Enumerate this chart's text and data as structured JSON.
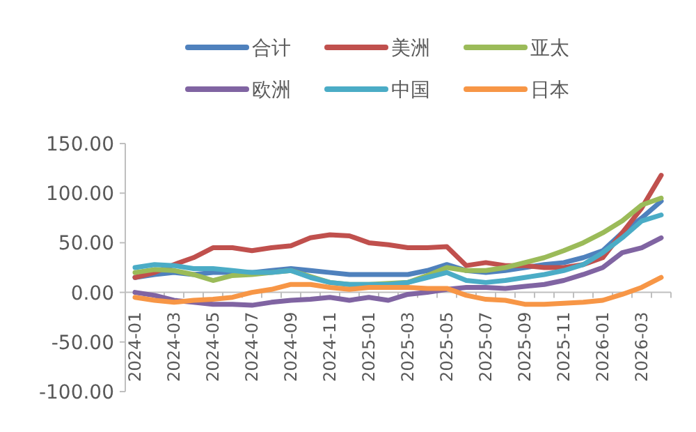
{
  "chart_data": {
    "type": "line",
    "categories": [
      "2024-01",
      null,
      "2024-03",
      null,
      "2024-05",
      null,
      "2024-07",
      null,
      "2024-09",
      null,
      "2024-11",
      null,
      "2025-01",
      null,
      "2025-03",
      null,
      "2025-05",
      null,
      "2025-07",
      null,
      "2025-09",
      null,
      "2025-11",
      null,
      "2026-01",
      null,
      "2026-03",
      null
    ],
    "ylim": [
      -100,
      150
    ],
    "yticks": [
      {
        "value": -100,
        "label": "-100.00"
      },
      {
        "value": -50,
        "label": "-50.00"
      },
      {
        "value": 0,
        "label": "0.00"
      },
      {
        "value": 50,
        "label": "50.00"
      },
      {
        "value": 100,
        "label": "100.00"
      },
      {
        "value": 150,
        "label": "150.00"
      }
    ],
    "legend": "top",
    "series": [
      {
        "name": "合计",
        "color": "#4f81bd",
        "values": [
          15,
          18,
          20,
          18,
          20,
          20,
          20,
          22,
          24,
          22,
          20,
          18,
          18,
          18,
          18,
          22,
          28,
          22,
          20,
          22,
          25,
          28,
          30,
          35,
          42,
          60,
          75,
          92
        ]
      },
      {
        "name": "美洲",
        "color": "#c0504d",
        "values": [
          15,
          20,
          28,
          35,
          45,
          45,
          42,
          45,
          47,
          55,
          58,
          57,
          50,
          48,
          45,
          45,
          46,
          27,
          30,
          27,
          27,
          25,
          25,
          28,
          35,
          60,
          85,
          118
        ]
      },
      {
        "name": "亚太",
        "color": "#9bbb59",
        "values": [
          20,
          23,
          22,
          18,
          12,
          17,
          18,
          20,
          22,
          16,
          10,
          8,
          8,
          9,
          10,
          17,
          25,
          22,
          22,
          25,
          30,
          35,
          42,
          50,
          60,
          72,
          88,
          95
        ]
      },
      {
        "name": "欧洲",
        "color": "#8064a2",
        "values": [
          0,
          -3,
          -8,
          -10,
          -12,
          -12,
          -13,
          -10,
          -8,
          -7,
          -5,
          -8,
          -5,
          -8,
          -2,
          0,
          3,
          5,
          5,
          4,
          6,
          8,
          12,
          18,
          25,
          40,
          45,
          55
        ]
      },
      {
        "name": "中国",
        "color": "#4bacc6",
        "values": [
          25,
          28,
          27,
          24,
          24,
          22,
          20,
          20,
          22,
          15,
          10,
          8,
          8,
          8,
          10,
          15,
          20,
          12,
          10,
          12,
          15,
          18,
          22,
          28,
          40,
          55,
          72,
          78
        ]
      },
      {
        "name": "日本",
        "color": "#f79646",
        "values": [
          -5,
          -8,
          -10,
          -8,
          -7,
          -5,
          0,
          3,
          8,
          8,
          5,
          3,
          5,
          5,
          5,
          4,
          4,
          -3,
          -7,
          -8,
          -12,
          -12,
          -11,
          -10,
          -8,
          -2,
          5,
          15
        ]
      }
    ]
  }
}
